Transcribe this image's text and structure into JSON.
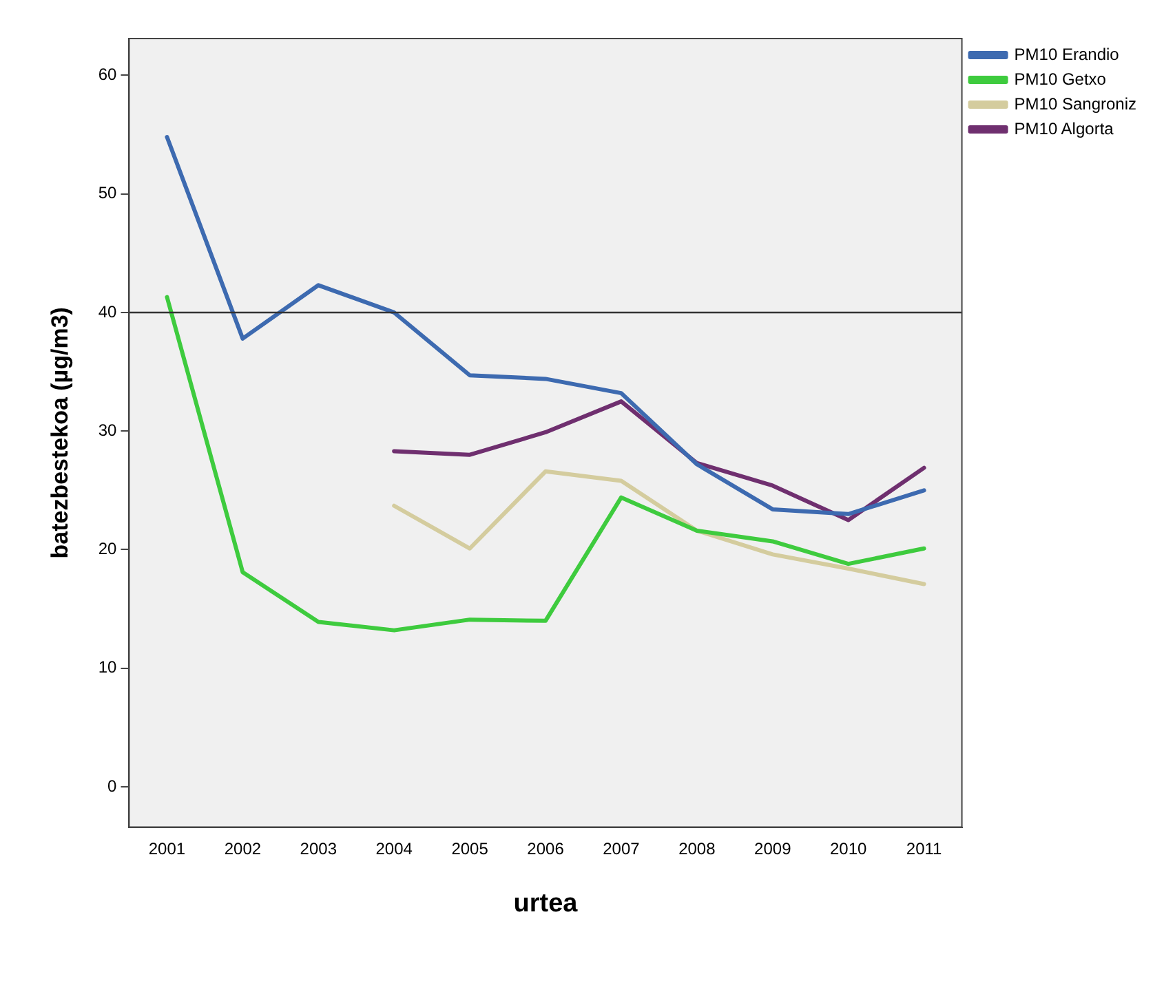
{
  "chart_data": {
    "type": "line",
    "xlabel": "urtea",
    "ylabel": "batezbestekoa (µg/m3)",
    "categories": [
      "2001",
      "2002",
      "2003",
      "2004",
      "2005",
      "2006",
      "2007",
      "2008",
      "2009",
      "2010",
      "2011"
    ],
    "series": [
      {
        "name": "PM10 Erandio",
        "color": "#3d6ab0",
        "values": [
          54.8,
          37.8,
          42.3,
          40.0,
          34.7,
          34.4,
          33.2,
          27.2,
          23.4,
          23.0,
          25.0
        ]
      },
      {
        "name": "PM10 Getxo",
        "color": "#3ecb3e",
        "values": [
          41.3,
          18.1,
          13.9,
          13.2,
          14.1,
          14.0,
          24.4,
          21.6,
          20.7,
          18.8,
          20.1
        ]
      },
      {
        "name": "PM10 Sangroniz",
        "color": "#d4cc9e",
        "values": [
          null,
          null,
          null,
          23.7,
          20.1,
          26.6,
          25.8,
          21.6,
          19.6,
          18.4,
          17.1
        ]
      },
      {
        "name": "PM10 Algorta",
        "color": "#6f2f6f",
        "values": [
          null,
          null,
          null,
          28.3,
          28.0,
          29.9,
          32.5,
          27.3,
          25.4,
          22.5,
          26.9
        ]
      }
    ],
    "ylim": [
      -3.4,
      63.1
    ],
    "yticks": [
      0,
      10,
      20,
      30,
      40,
      50,
      60
    ],
    "ref_lines": [
      {
        "axis": "y",
        "value": 40,
        "color": "#333333"
      }
    ],
    "grid": false,
    "legend": "top right",
    "marker": "none",
    "line_style": "solid"
  }
}
